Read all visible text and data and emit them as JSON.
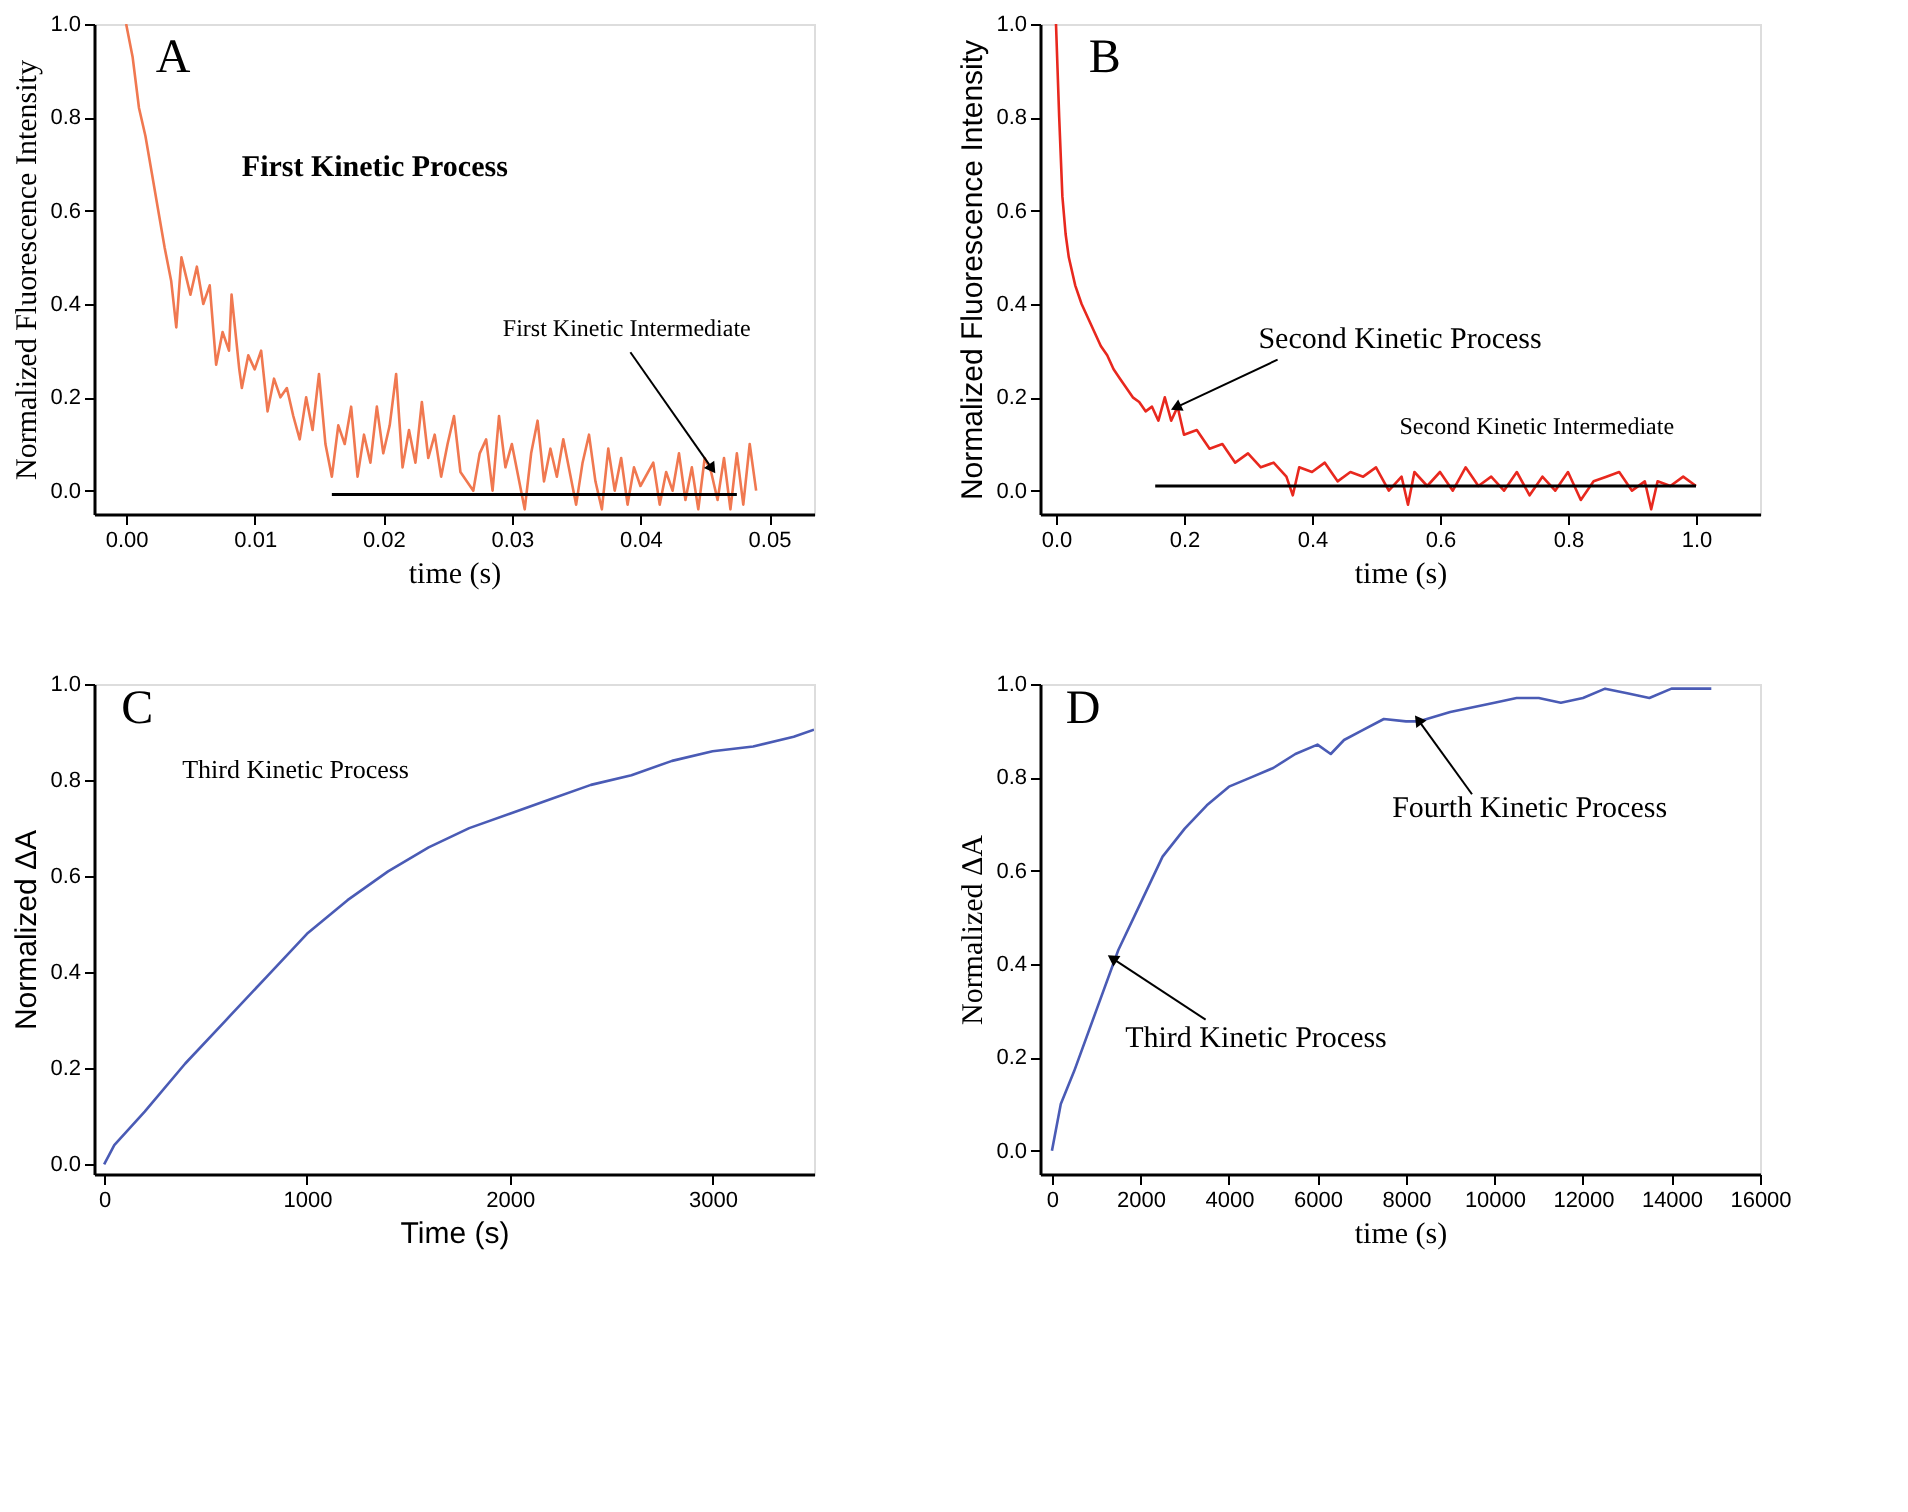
{
  "chart_data": [
    {
      "type": "line",
      "xlabel": "time (s)",
      "ylabel": "Normalized Fluorescence Intensity",
      "xlim": [
        -0.0025,
        0.0535
      ],
      "ylim": [
        -0.05,
        1.0
      ],
      "line_style": "solid",
      "xticks": [
        {
          "value": 0,
          "label": "0.00"
        },
        {
          "value": 0.01,
          "label": "0.01"
        },
        {
          "value": 0.02,
          "label": "0.02"
        },
        {
          "value": 0.03,
          "label": "0.03"
        },
        {
          "value": 0.04,
          "label": "0.04"
        },
        {
          "value": 0.05,
          "label": "0.05"
        }
      ],
      "yticks": [
        {
          "value": 0,
          "label": "0.0"
        },
        {
          "value": 0.2,
          "label": "0.2"
        },
        {
          "value": 0.4,
          "label": "0.4"
        },
        {
          "value": 0.6,
          "label": "0.6"
        },
        {
          "value": 0.8,
          "label": "0.8"
        },
        {
          "value": 1,
          "label": "1.0"
        }
      ],
      "grid": false,
      "series": [
        {
          "color": "#f07850",
          "x": [
            0,
            0.0005,
            0.001,
            0.0015,
            0.002,
            0.0025,
            0.003,
            0.0035,
            0.0039,
            0.0043,
            0.005,
            0.0055,
            0.006,
            0.0065,
            0.007,
            0.0075,
            0.008,
            0.0082,
            0.0088,
            0.009,
            0.0095,
            0.01,
            0.0105,
            0.011,
            0.0115,
            0.012,
            0.0125,
            0.013,
            0.0135,
            0.014,
            0.0145,
            0.015,
            0.0155,
            0.016,
            0.0165,
            0.017,
            0.0175,
            0.018,
            0.0185,
            0.019,
            0.0195,
            0.02,
            0.0205,
            0.021,
            0.0215,
            0.022,
            0.0225,
            0.023,
            0.0235,
            0.024,
            0.0245,
            0.025,
            0.0255,
            0.026,
            0.027,
            0.0275,
            0.028,
            0.0285,
            0.029,
            0.0295,
            0.03,
            0.031,
            0.0315,
            0.032,
            0.0325,
            0.033,
            0.0335,
            0.034,
            0.035,
            0.0355,
            0.036,
            0.0365,
            0.037,
            0.0375,
            0.038,
            0.0385,
            0.039,
            0.0395,
            0.04,
            0.041,
            0.0415,
            0.042,
            0.0425,
            0.043,
            0.0435,
            0.044,
            0.0445,
            0.045,
            0.0455,
            0.046,
            0.0465,
            0.047,
            0.0475,
            0.048,
            0.0485,
            0.049
          ],
          "values": [
            1.0,
            0.93,
            0.82,
            0.76,
            0.68,
            0.6,
            0.52,
            0.45,
            0.35,
            0.5,
            0.42,
            0.48,
            0.4,
            0.44,
            0.27,
            0.34,
            0.3,
            0.42,
            0.26,
            0.22,
            0.29,
            0.26,
            0.3,
            0.17,
            0.24,
            0.2,
            0.22,
            0.16,
            0.11,
            0.2,
            0.13,
            0.25,
            0.1,
            0.03,
            0.14,
            0.1,
            0.18,
            0.03,
            0.12,
            0.06,
            0.18,
            0.08,
            0.14,
            0.25,
            0.05,
            0.13,
            0.06,
            0.19,
            0.07,
            0.12,
            0.03,
            0.1,
            0.16,
            0.04,
            0.0,
            0.08,
            0.11,
            0.0,
            0.16,
            0.05,
            0.1,
            -0.04,
            0.08,
            0.15,
            0.02,
            0.09,
            0.03,
            0.11,
            -0.03,
            0.06,
            0.12,
            0.02,
            -0.04,
            0.09,
            0.0,
            0.07,
            -0.03,
            0.05,
            0.01,
            0.06,
            -0.03,
            0.04,
            0.0,
            0.08,
            -0.02,
            0.05,
            -0.04,
            0.07,
            0.04,
            -0.02,
            0.07,
            -0.04,
            0.08,
            -0.03,
            0.1,
            0.0
          ]
        },
        {
          "color": "#000000",
          "x": [
            0.016,
            0.0475
          ],
          "values": [
            -0.008,
            -0.008
          ]
        }
      ],
      "annotations": [
        "A",
        "First Kinetic Process",
        {
          "text": "First Kinetic Intermediate",
          "x": 0.0455,
          "y": 0.05
        }
      ]
    },
    {
      "type": "line",
      "xlabel": "time (s)",
      "ylabel": "Normalized Fluorescence Intensity",
      "xlim": [
        -0.025,
        1.1
      ],
      "ylim": [
        -0.05,
        1.0
      ],
      "line_style": "solid",
      "xticks": [
        {
          "value": 0,
          "label": "0.0"
        },
        {
          "value": 0.2,
          "label": "0.2"
        },
        {
          "value": 0.4,
          "label": "0.4"
        },
        {
          "value": 0.6,
          "label": "0.6"
        },
        {
          "value": 0.8,
          "label": "0.8"
        },
        {
          "value": 1,
          "label": "1.0"
        }
      ],
      "yticks": [
        {
          "value": 0,
          "label": "0.0"
        },
        {
          "value": 0.2,
          "label": "0.2"
        },
        {
          "value": 0.4,
          "label": "0.4"
        },
        {
          "value": 0.6,
          "label": "0.6"
        },
        {
          "value": 0.8,
          "label": "0.8"
        },
        {
          "value": 1,
          "label": "1.0"
        }
      ],
      "grid": false,
      "series": [
        {
          "color": "#e8281e",
          "x": [
            0,
            0.005,
            0.01,
            0.015,
            0.02,
            0.03,
            0.04,
            0.05,
            0.06,
            0.07,
            0.08,
            0.09,
            0.1,
            0.11,
            0.12,
            0.13,
            0.14,
            0.15,
            0.16,
            0.17,
            0.18,
            0.19,
            0.2,
            0.22,
            0.24,
            0.26,
            0.28,
            0.3,
            0.32,
            0.34,
            0.36,
            0.37,
            0.38,
            0.4,
            0.42,
            0.44,
            0.46,
            0.48,
            0.5,
            0.52,
            0.54,
            0.55,
            0.56,
            0.58,
            0.6,
            0.62,
            0.64,
            0.66,
            0.68,
            0.7,
            0.72,
            0.74,
            0.76,
            0.78,
            0.8,
            0.82,
            0.84,
            0.86,
            0.88,
            0.9,
            0.92,
            0.93,
            0.94,
            0.96,
            0.98,
            1.0
          ],
          "values": [
            1.0,
            0.8,
            0.63,
            0.55,
            0.5,
            0.44,
            0.4,
            0.37,
            0.34,
            0.31,
            0.29,
            0.26,
            0.24,
            0.22,
            0.2,
            0.19,
            0.17,
            0.18,
            0.15,
            0.2,
            0.15,
            0.18,
            0.12,
            0.13,
            0.09,
            0.1,
            0.06,
            0.08,
            0.05,
            0.06,
            0.03,
            -0.01,
            0.05,
            0.04,
            0.06,
            0.02,
            0.04,
            0.03,
            0.05,
            0.0,
            0.03,
            -0.03,
            0.04,
            0.01,
            0.04,
            0.0,
            0.05,
            0.01,
            0.03,
            0.0,
            0.04,
            -0.01,
            0.03,
            0.0,
            0.04,
            -0.02,
            0.02,
            0.03,
            0.04,
            0.0,
            0.02,
            -0.04,
            0.02,
            0.01,
            0.03,
            0.01
          ]
        },
        {
          "color": "#000000",
          "x": [
            0.155,
            1.0
          ],
          "values": [
            0.01,
            0.01
          ]
        }
      ],
      "annotations": [
        "B",
        {
          "text": "Second Kinetic Process",
          "x": 0.19,
          "y": 0.18
        },
        "Second Kinetic Intermediate"
      ]
    },
    {
      "type": "line",
      "xlabel": "Time (s)",
      "ylabel": "Normalized ΔA",
      "xlim": [
        -50,
        3500
      ],
      "ylim": [
        -0.02,
        1.0
      ],
      "line_style": "solid",
      "xticks": [
        0,
        1000,
        2000,
        3000
      ],
      "yticks": [
        {
          "value": 0,
          "label": "0.0"
        },
        {
          "value": 0.2,
          "label": "0.2"
        },
        {
          "value": 0.4,
          "label": "0.4"
        },
        {
          "value": 0.6,
          "label": "0.6"
        },
        {
          "value": 0.8,
          "label": "0.8"
        },
        {
          "value": 1,
          "label": "1.0"
        }
      ],
      "grid": false,
      "series": [
        {
          "color": "#4a5bb5",
          "x": [
            0,
            50,
            200,
            400,
            600,
            800,
            1000,
            1200,
            1400,
            1600,
            1800,
            2000,
            2200,
            2400,
            2600,
            2800,
            3000,
            3200,
            3400,
            3500
          ],
          "values": [
            0,
            0.04,
            0.11,
            0.21,
            0.3,
            0.39,
            0.48,
            0.55,
            0.61,
            0.66,
            0.7,
            0.73,
            0.76,
            0.79,
            0.81,
            0.84,
            0.86,
            0.87,
            0.89,
            0.905
          ]
        }
      ],
      "annotations": [
        "C",
        "Third Kinetic Process"
      ]
    },
    {
      "type": "line",
      "xlabel": "time (s)",
      "ylabel": "Normalized ΔA",
      "xlim": [
        -270,
        16000
      ],
      "ylim": [
        -0.05,
        1.0
      ],
      "line_style": "solid",
      "xticks": [
        0,
        2000,
        4000,
        6000,
        8000,
        10000,
        12000,
        14000,
        16000
      ],
      "yticks": [
        {
          "value": 0,
          "label": "0.0"
        },
        {
          "value": 0.2,
          "label": "0.2"
        },
        {
          "value": 0.4,
          "label": "0.4"
        },
        {
          "value": 0.6,
          "label": "0.6"
        },
        {
          "value": 0.8,
          "label": "0.8"
        },
        {
          "value": 1,
          "label": "1.0"
        }
      ],
      "grid": false,
      "series": [
        {
          "color": "#4a5bb5",
          "x": [
            0,
            200,
            500,
            1000,
            1500,
            2000,
            2500,
            3000,
            3500,
            4000,
            4500,
            5000,
            5500,
            6000,
            6300,
            6600,
            7000,
            7500,
            8000,
            8300,
            9000,
            10000,
            10500,
            11000,
            11500,
            12000,
            12500,
            13000,
            13500,
            14000,
            14500,
            14900
          ],
          "values": [
            0,
            0.1,
            0.17,
            0.3,
            0.43,
            0.53,
            0.63,
            0.69,
            0.74,
            0.78,
            0.8,
            0.82,
            0.85,
            0.87,
            0.85,
            0.88,
            0.9,
            0.925,
            0.92,
            0.92,
            0.94,
            0.96,
            0.97,
            0.97,
            0.96,
            0.97,
            0.99,
            0.98,
            0.97,
            0.99,
            0.99,
            0.99
          ]
        }
      ],
      "annotations": [
        "D",
        {
          "text": "Fourth Kinetic Process",
          "x": 8300,
          "y": 0.92
        },
        {
          "text": "Third Kinetic Process",
          "x": 1400,
          "y": 0.41
        }
      ]
    }
  ]
}
